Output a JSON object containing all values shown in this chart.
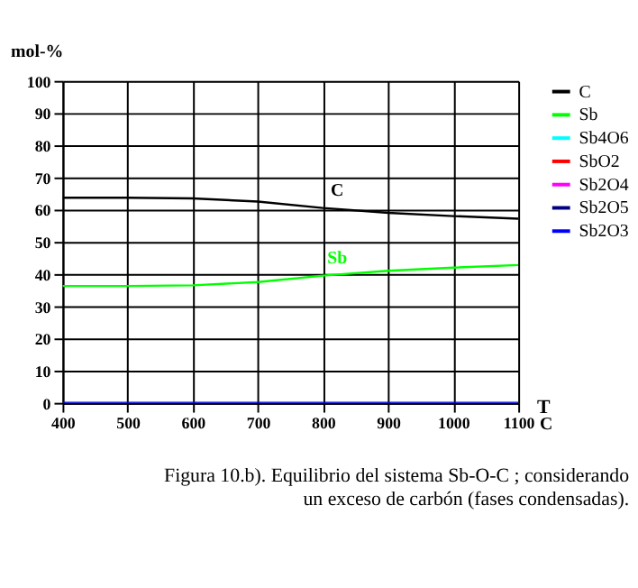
{
  "chart_data": {
    "type": "line",
    "x": [
      400,
      500,
      600,
      700,
      800,
      900,
      1000,
      1100
    ],
    "series": [
      {
        "name": "C",
        "color": "#000000",
        "values": [
          63.7,
          63.7,
          63.5,
          62.5,
          60.5,
          59,
          58,
          57.2
        ]
      },
      {
        "name": "Sb",
        "color": "#00ff00",
        "values": [
          36.3,
          36.3,
          36.5,
          37.5,
          39.5,
          41,
          42,
          42.8
        ]
      },
      {
        "name": "Sb4O6",
        "color": "#00ffff",
        "values": [
          null,
          null,
          null,
          null,
          null,
          null,
          null,
          null
        ]
      },
      {
        "name": "SbO2",
        "color": "#ff0000",
        "values": [
          null,
          null,
          null,
          null,
          null,
          null,
          null,
          null
        ]
      },
      {
        "name": "Sb2O4",
        "color": "#ff00ff",
        "values": [
          null,
          null,
          null,
          null,
          null,
          null,
          null,
          null
        ]
      },
      {
        "name": "Sb2O5",
        "color": "#000080",
        "values": [
          null,
          null,
          null,
          null,
          null,
          null,
          null,
          null
        ]
      },
      {
        "name": "Sb2O3",
        "color": "#0000ff",
        "values": [
          0,
          0,
          0,
          0,
          0,
          0,
          0,
          0
        ]
      }
    ],
    "xlabel": "T",
    "ylabel": "mol-%",
    "xlim": [
      400,
      1100
    ],
    "xticks": [
      400,
      500,
      600,
      700,
      800,
      900,
      1000,
      1100
    ],
    "ylim": [
      0,
      100
    ],
    "yticks": [
      0,
      10,
      20,
      30,
      40,
      50,
      60,
      70,
      80,
      90,
      100
    ],
    "grid": true,
    "legend": "right",
    "marker": "none",
    "line_style": "solid",
    "annotations": [
      "C",
      "Figura 10.b).  Equilibrio del sistema Sb-O-C ; considerando",
      "un exceso de carbón (fases condensadas)."
    ]
  }
}
